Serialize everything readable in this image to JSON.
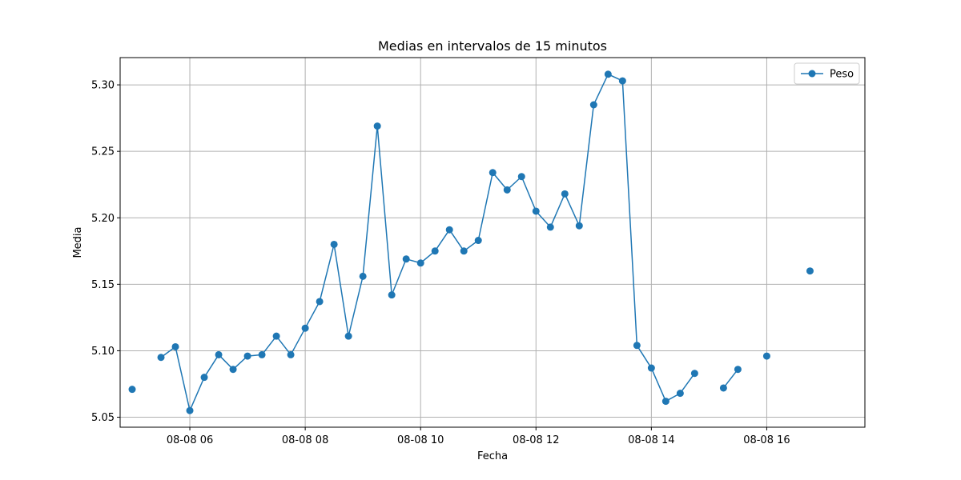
{
  "chart_data": {
    "type": "line",
    "title": "Medias en intervalos de 15 minutos",
    "xlabel": "Fecha",
    "ylabel": "Media",
    "x_tick_labels": [
      "08-08 06",
      "08-08 08",
      "08-08 10",
      "08-08 12",
      "08-08 14",
      "08-08 16"
    ],
    "x_tick_hours": [
      6,
      8,
      10,
      12,
      14,
      16
    ],
    "y_ticks": [
      5.05,
      5.1,
      5.15,
      5.2,
      5.25,
      5.3
    ],
    "y_tick_labels": [
      "5.05",
      "5.10",
      "5.15",
      "5.20",
      "5.25",
      "5.30"
    ],
    "xlim_hours": [
      4.7917,
      17.7014
    ],
    "ylim": [
      5.0425,
      5.3205
    ],
    "grid": true,
    "legend": {
      "position": "top-right"
    },
    "series": [
      {
        "name": "Peso",
        "color": "#1f77b4",
        "marker": "circle",
        "x_hours": [
          5.0,
          5.5,
          5.75,
          6.0,
          6.25,
          6.5,
          6.75,
          7.0,
          7.25,
          7.5,
          7.75,
          8.0,
          8.25,
          8.5,
          8.75,
          9.0,
          9.25,
          9.5,
          9.75,
          10.0,
          10.25,
          10.5,
          10.75,
          11.0,
          11.25,
          11.5,
          11.75,
          12.0,
          12.25,
          12.5,
          12.75,
          13.0,
          13.25,
          13.5,
          13.75,
          14.0,
          14.25,
          14.5,
          14.75,
          15.25,
          15.5,
          16.0,
          16.75
        ],
        "y": [
          5.071,
          5.095,
          5.103,
          5.055,
          5.08,
          5.097,
          5.086,
          5.096,
          5.097,
          5.111,
          5.097,
          5.117,
          5.137,
          5.18,
          5.111,
          5.156,
          5.269,
          5.142,
          5.169,
          5.166,
          5.175,
          5.191,
          5.175,
          5.183,
          5.234,
          5.221,
          5.231,
          5.205,
          5.193,
          5.218,
          5.194,
          5.285,
          5.308,
          5.303,
          5.104,
          5.087,
          5.062,
          5.068,
          5.083,
          5.072,
          5.086,
          5.096,
          5.16
        ],
        "connected_to_previous": [
          false,
          false,
          true,
          true,
          true,
          true,
          true,
          true,
          true,
          true,
          true,
          true,
          true,
          true,
          true,
          true,
          true,
          true,
          true,
          true,
          true,
          true,
          true,
          true,
          true,
          true,
          true,
          true,
          true,
          true,
          true,
          true,
          true,
          true,
          true,
          true,
          true,
          true,
          true,
          false,
          true,
          false,
          false
        ]
      }
    ]
  }
}
